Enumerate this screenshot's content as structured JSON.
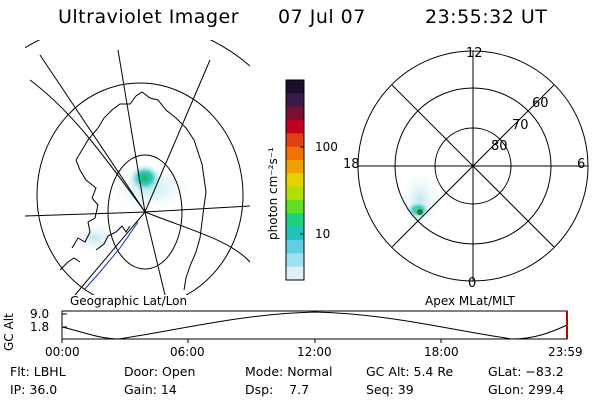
{
  "header": {
    "title": "Ultraviolet Imager",
    "date": "07 Jul 07",
    "time": "23:55:32 UT"
  },
  "colorbar": {
    "label": "photon cm⁻²s⁻¹",
    "ticks": [
      "100",
      "10"
    ],
    "colors": [
      "#1a0f2e",
      "#3a1a4a",
      "#7a1030",
      "#c00020",
      "#e04010",
      "#f07000",
      "#f0a000",
      "#e8d000",
      "#b0e000",
      "#60e020",
      "#20d080",
      "#20c0c0",
      "#60d0e0",
      "#a0e0f0",
      "#e0f0f8"
    ]
  },
  "left_map": {
    "caption": "Geographic Lat/Lon"
  },
  "right_polar": {
    "caption": "Apex MLat/MLT",
    "mlt_labels": {
      "top": "12",
      "right": "6",
      "bottom": "0",
      "left": "18"
    },
    "lat_labels": [
      "60",
      "70",
      "80"
    ]
  },
  "altitude_plot": {
    "ylabel": "GC Alt",
    "y_ticks": [
      "9.0",
      "1.8"
    ],
    "x_ticks": [
      "00:00",
      "06:00",
      "12:00",
      "18:00",
      "23:59"
    ],
    "current_marker_color": "#c00000"
  },
  "status": {
    "row1": {
      "flt": "Flt: LBHL",
      "door": "Door: Open",
      "mode": "Mode: Normal",
      "gcalt": "GC Alt: 5.4 Re",
      "glat": "GLat: −83.2"
    },
    "row2": {
      "ip": "IP: 36.0",
      "gain": "Gain: 14",
      "dsp": "Dsp:    7.7",
      "seq": "Seq: 39",
      "glon": "GLon: 299.4"
    }
  }
}
